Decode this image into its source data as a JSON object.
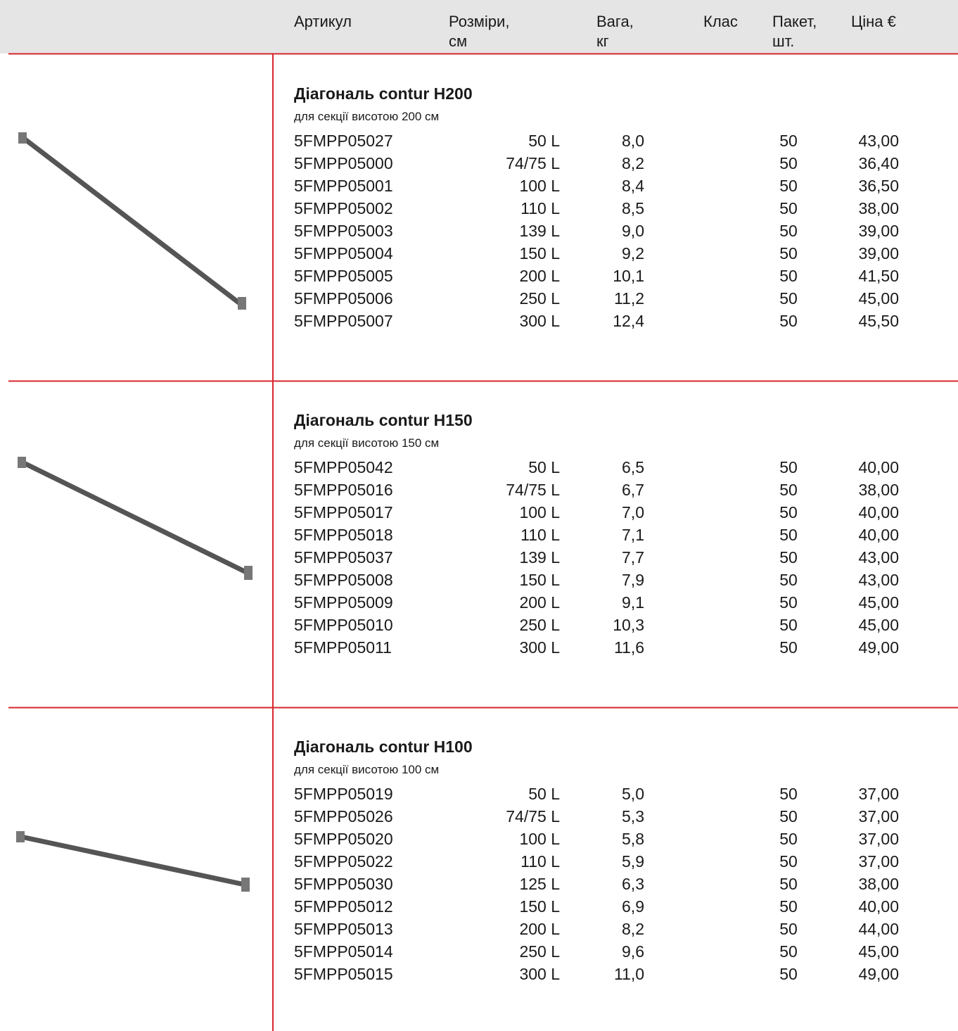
{
  "header": {
    "columns": [
      [
        "Артикул"
      ],
      [
        "Розміри,",
        "см"
      ],
      [
        "Вага,",
        "кг"
      ],
      [
        "Клас"
      ],
      [
        "Пакет,",
        "шт."
      ],
      [
        "Ціна €"
      ]
    ]
  },
  "sections": [
    {
      "title": "Діагональ contur H200",
      "subtitle": "для секції висотою 200 см",
      "rows": [
        [
          "5FMPP05027",
          "50 L",
          "8,0",
          "50",
          "43,00"
        ],
        [
          "5FMPP05000",
          "74/75 L",
          "8,2",
          "50",
          "36,40"
        ],
        [
          "5FMPP05001",
          "100 L",
          "8,4",
          "50",
          "36,50"
        ],
        [
          "5FMPP05002",
          "110 L",
          "8,5",
          "50",
          "38,00"
        ],
        [
          "5FMPP05003",
          "139 L",
          "9,0",
          "50",
          "39,00"
        ],
        [
          "5FMPP05004",
          "150 L",
          "9,2",
          "50",
          "39,00"
        ],
        [
          "5FMPP05005",
          "200 L",
          "10,1",
          "50",
          "41,50"
        ],
        [
          "5FMPP05006",
          "250 L",
          "11,2",
          "50",
          "45,00"
        ],
        [
          "5FMPP05007",
          "300 L",
          "12,4",
          "50",
          "45,50"
        ]
      ]
    },
    {
      "title": "Діагональ contur H150",
      "subtitle": "для секції висотою 150 см",
      "rows": [
        [
          "5FMPP05042",
          "50 L",
          "6,5",
          "50",
          "40,00"
        ],
        [
          "5FMPP05016",
          "74/75 L",
          "6,7",
          "50",
          "38,00"
        ],
        [
          "5FMPP05017",
          "100 L",
          "7,0",
          "50",
          "40,00"
        ],
        [
          "5FMPP05018",
          "110 L",
          "7,1",
          "50",
          "40,00"
        ],
        [
          "5FMPP05037",
          "139 L",
          "7,7",
          "50",
          "43,00"
        ],
        [
          "5FMPP05008",
          "150 L",
          "7,9",
          "50",
          "43,00"
        ],
        [
          "5FMPP05009",
          "200 L",
          "9,1",
          "50",
          "45,00"
        ],
        [
          "5FMPP05010",
          "250 L",
          "10,3",
          "50",
          "45,00"
        ],
        [
          "5FMPP05011",
          "300 L",
          "11,6",
          "50",
          "49,00"
        ]
      ]
    },
    {
      "title": "Діагональ contur H100",
      "subtitle": "для секції висотою 100 см",
      "rows": [
        [
          "5FMPP05019",
          "50 L",
          "5,0",
          "50",
          "37,00"
        ],
        [
          "5FMPP05026",
          "74/75 L",
          "5,3",
          "50",
          "37,00"
        ],
        [
          "5FMPP05020",
          "100 L",
          "5,8",
          "50",
          "37,00"
        ],
        [
          "5FMPP05022",
          "110 L",
          "5,9",
          "50",
          "37,00"
        ],
        [
          "5FMPP05030",
          "125 L",
          "6,3",
          "50",
          "38,00"
        ],
        [
          "5FMPP05012",
          "150 L",
          "6,9",
          "50",
          "40,00"
        ],
        [
          "5FMPP05013",
          "200 L",
          "8,2",
          "50",
          "44,00"
        ],
        [
          "5FMPP05014",
          "250 L",
          "9,6",
          "50",
          "45,00"
        ],
        [
          "5FMPP05015",
          "300 L",
          "11,0",
          "50",
          "49,00"
        ]
      ]
    }
  ]
}
